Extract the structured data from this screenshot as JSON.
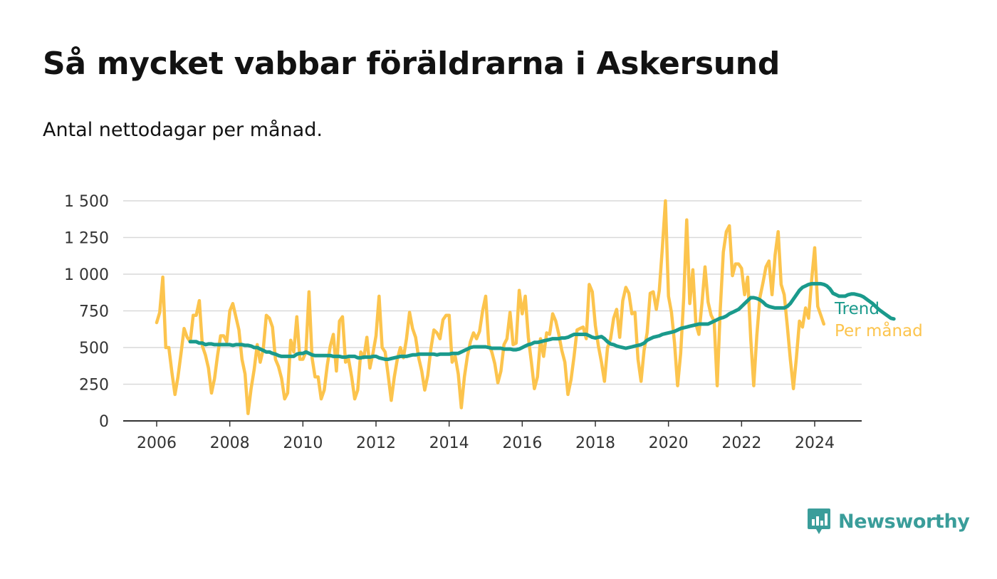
{
  "title": "Så mycket vabbar föräldrarna i Askersund",
  "subtitle": "Antal nettodagar per månad.",
  "brand": {
    "name": "Newsworthy",
    "icon": "newsworthy-chat-bars-icon",
    "color": "#3a9d9a"
  },
  "chart_data": {
    "type": "line",
    "x_axis": {
      "range": [
        2005.6,
        2025.2
      ],
      "ticks": [
        2006,
        2008,
        2010,
        2012,
        2014,
        2016,
        2018,
        2020,
        2022,
        2024
      ],
      "tick_labels": [
        "2006",
        "2008",
        "2010",
        "2012",
        "2014",
        "2016",
        "2018",
        "2020",
        "2022",
        "2024"
      ]
    },
    "y_axis": {
      "range": [
        0,
        1500
      ],
      "ticks": [
        0,
        250,
        500,
        750,
        1000,
        1250,
        1500
      ],
      "tick_labels": [
        "0",
        "250",
        "500",
        "750",
        "1 000",
        "1 250",
        "1 500"
      ]
    },
    "grid": true,
    "legend": "direct labels at right end of lines",
    "series": [
      {
        "name": "Per månad",
        "color": "#fcc44d",
        "x_start": 2006.0,
        "step": "month",
        "values": [
          670,
          740,
          980,
          500,
          500,
          330,
          180,
          300,
          460,
          630,
          570,
          540,
          720,
          720,
          820,
          510,
          450,
          360,
          190,
          290,
          450,
          580,
          580,
          540,
          750,
          800,
          710,
          620,
          420,
          320,
          50,
          220,
          350,
          520,
          400,
          490,
          720,
          700,
          640,
          420,
          370,
          290,
          150,
          190,
          550,
          470,
          710,
          420,
          420,
          470,
          880,
          430,
          300,
          300,
          150,
          210,
          380,
          510,
          590,
          340,
          680,
          710,
          400,
          420,
          300,
          150,
          210,
          470,
          430,
          570,
          360,
          460,
          580,
          850,
          500,
          470,
          310,
          140,
          300,
          420,
          500,
          430,
          560,
          740,
          630,
          570,
          430,
          340,
          210,
          310,
          490,
          620,
          600,
          560,
          690,
          720,
          720,
          400,
          440,
          320,
          90,
          300,
          440,
          540,
          600,
          560,
          610,
          750,
          850,
          520,
          470,
          390,
          260,
          340,
          520,
          560,
          740,
          520,
          530,
          890,
          730,
          850,
          570,
          400,
          220,
          300,
          560,
          440,
          600,
          590,
          730,
          680,
          590,
          480,
          400,
          180,
          280,
          440,
          620,
          630,
          640,
          560,
          930,
          880,
          650,
          510,
          400,
          270,
          500,
          560,
          700,
          760,
          570,
          820,
          910,
          870,
          730,
          740,
          420,
          270,
          480,
          600,
          870,
          880,
          760,
          890,
          1180,
          1500,
          850,
          740,
          530,
          240,
          460,
          840,
          1370,
          800,
          1030,
          660,
          590,
          800,
          1050,
          810,
          720,
          680,
          240,
          760,
          1150,
          1290,
          1330,
          990,
          1070,
          1070,
          1040,
          860,
          980,
          560,
          240,
          580,
          840,
          940,
          1050,
          1090,
          860,
          1130,
          1290,
          930,
          860,
          650,
          420,
          220,
          430,
          680,
          640,
          770,
          700,
          960,
          1180,
          780,
          720,
          660
        ]
      },
      {
        "name": "Trend",
        "color": "#1a9a8c",
        "x_start": 2006.917,
        "step": "month",
        "values": [
          540,
          540,
          540,
          530,
          530,
          520,
          525,
          525,
          520,
          520,
          520,
          520,
          520,
          520,
          515,
          520,
          520,
          520,
          515,
          515,
          510,
          500,
          500,
          490,
          480,
          470,
          470,
          460,
          455,
          445,
          440,
          440,
          440,
          440,
          440,
          455,
          460,
          460,
          470,
          460,
          450,
          445,
          445,
          445,
          445,
          445,
          445,
          440,
          440,
          440,
          435,
          435,
          440,
          440,
          440,
          430,
          430,
          435,
          435,
          435,
          440,
          440,
          430,
          425,
          420,
          420,
          425,
          430,
          435,
          440,
          440,
          440,
          445,
          450,
          450,
          455,
          455,
          455,
          455,
          455,
          455,
          450,
          455,
          455,
          455,
          455,
          460,
          460,
          460,
          470,
          480,
          490,
          500,
          505,
          505,
          505,
          505,
          505,
          500,
          495,
          495,
          495,
          495,
          490,
          490,
          490,
          485,
          485,
          490,
          500,
          510,
          520,
          525,
          535,
          535,
          540,
          545,
          550,
          555,
          560,
          560,
          560,
          565,
          565,
          570,
          580,
          590,
          590,
          590,
          590,
          590,
          580,
          570,
          565,
          570,
          575,
          560,
          540,
          525,
          520,
          510,
          505,
          500,
          495,
          500,
          505,
          510,
          515,
          520,
          530,
          550,
          560,
          570,
          575,
          580,
          590,
          595,
          600,
          605,
          610,
          620,
          630,
          635,
          640,
          645,
          650,
          655,
          660,
          660,
          660,
          660,
          670,
          680,
          690,
          700,
          705,
          715,
          730,
          740,
          750,
          760,
          780,
          800,
          820,
          840,
          840,
          835,
          825,
          810,
          790,
          780,
          775,
          770,
          770,
          770,
          770,
          780,
          800,
          830,
          860,
          890,
          910,
          920,
          930,
          935,
          935,
          935,
          935,
          930,
          920,
          900,
          870,
          860,
          850,
          850,
          850,
          860,
          865,
          865,
          860,
          855,
          845,
          830,
          815,
          800,
          780,
          760,
          745,
          730,
          715,
          700,
          695
        ]
      }
    ]
  }
}
